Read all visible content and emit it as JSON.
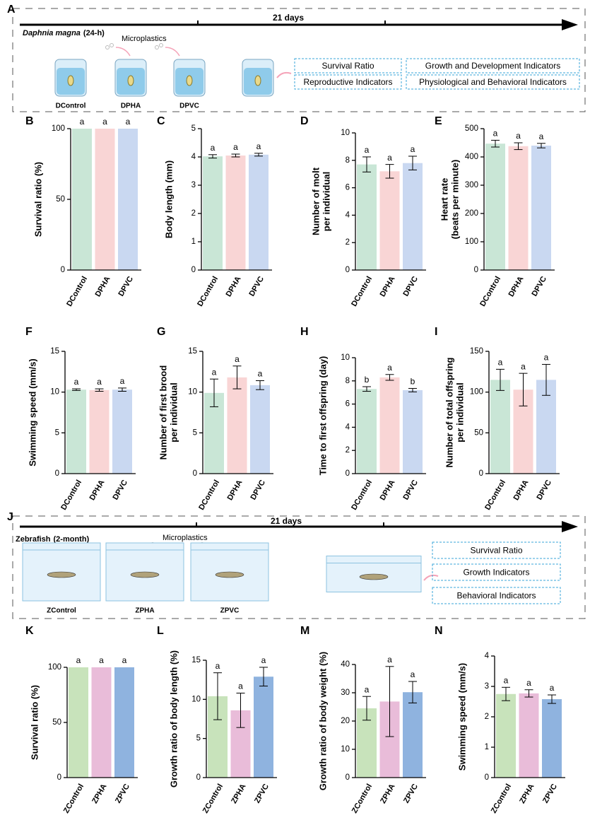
{
  "schematics": [
    {
      "label": "A",
      "duration": "21 days",
      "organism": "Daphnia magna",
      "exposure": "(24-h)",
      "agent": "Microplastics",
      "groups": [
        "DControl",
        "DPHA",
        "DPVC"
      ],
      "indicators": [
        "Survival Ratio",
        "Growth and Development Indicators",
        "Reproductive Indicators",
        "Physiological and Behavioral Indicators"
      ]
    },
    {
      "label": "J",
      "duration": "21 days",
      "organism": "Zebrafish",
      "exposure": "(2-month)",
      "agent": "Microplastics",
      "groups": [
        "ZControl",
        "ZPHA",
        "ZPVC"
      ],
      "indicators": [
        "Survival Ratio",
        "Growth Indicators",
        "Behavioral Indicators"
      ]
    }
  ],
  "chart_data": [
    {
      "type": "bar",
      "panel": "B",
      "ylabel": [
        "Survival ratio (%)"
      ],
      "categories": [
        "DControl",
        "DPHA",
        "DPVC"
      ],
      "values": [
        100,
        100,
        100
      ],
      "errors": [
        null,
        null,
        null
      ],
      "annotations": [
        "a",
        "a",
        "a"
      ],
      "colors": [
        "#c9e6d6",
        "#f9d5d5",
        "#c9d8f1"
      ],
      "ylim": [
        0,
        100
      ],
      "yticks": [
        0,
        50,
        100
      ]
    },
    {
      "type": "bar",
      "panel": "C",
      "ylabel": [
        "Body length (mm)"
      ],
      "categories": [
        "DControl",
        "DPHA",
        "DPVC"
      ],
      "values": [
        4.02,
        4.05,
        4.08
      ],
      "errors": [
        0.06,
        0.05,
        0.05
      ],
      "annotations": [
        "a",
        "a",
        "a"
      ],
      "colors": [
        "#c9e6d6",
        "#f9d5d5",
        "#c9d8f1"
      ],
      "ylim": [
        0,
        5
      ],
      "yticks": [
        0,
        1,
        2,
        3,
        4,
        5
      ]
    },
    {
      "type": "bar",
      "panel": "D",
      "ylabel": [
        "Number of molt",
        "per individual"
      ],
      "categories": [
        "DControl",
        "DPHA",
        "DPVC"
      ],
      "values": [
        7.7,
        7.2,
        7.8
      ],
      "errors": [
        0.55,
        0.5,
        0.5
      ],
      "annotations": [
        "a",
        "a",
        "a"
      ],
      "colors": [
        "#c9e6d6",
        "#f9d5d5",
        "#c9d8f1"
      ],
      "ylim": [
        0,
        10
      ],
      "yticks": [
        0,
        2,
        4,
        6,
        8,
        10
      ]
    },
    {
      "type": "bar",
      "panel": "E",
      "ylabel": [
        "Heart rate",
        "(beats per minute)"
      ],
      "categories": [
        "DControl",
        "DPHA",
        "DPVC"
      ],
      "values": [
        447,
        438,
        440
      ],
      "errors": [
        12,
        12,
        8
      ],
      "annotations": [
        "a",
        "a",
        "a"
      ],
      "colors": [
        "#c9e6d6",
        "#f9d5d5",
        "#c9d8f1"
      ],
      "ylim": [
        0,
        500
      ],
      "yticks": [
        0,
        100,
        200,
        300,
        400,
        500
      ]
    },
    {
      "type": "bar",
      "panel": "F",
      "ylabel": [
        "Swimming speed (mm/s)"
      ],
      "categories": [
        "DControl",
        "DPHA",
        "DPVC"
      ],
      "values": [
        10.3,
        10.25,
        10.3
      ],
      "errors": [
        0.1,
        0.15,
        0.2
      ],
      "annotations": [
        "a",
        "a",
        "a"
      ],
      "colors": [
        "#c9e6d6",
        "#f9d5d5",
        "#c9d8f1"
      ],
      "ylim": [
        0,
        15
      ],
      "yticks": [
        0,
        5,
        10,
        15
      ]
    },
    {
      "type": "bar",
      "panel": "G",
      "ylabel": [
        "Number of first brood",
        "per individual"
      ],
      "categories": [
        "DControl",
        "DPHA",
        "DPVC"
      ],
      "values": [
        9.9,
        11.8,
        10.85
      ],
      "errors": [
        1.7,
        1.4,
        0.55
      ],
      "annotations": [
        "a",
        "a",
        "a"
      ],
      "colors": [
        "#c9e6d6",
        "#f9d5d5",
        "#c9d8f1"
      ],
      "ylim": [
        0,
        15
      ],
      "yticks": [
        0,
        5,
        10,
        15
      ]
    },
    {
      "type": "bar",
      "panel": "H",
      "ylabel": [
        "Time to first offspring (day)"
      ],
      "categories": [
        "DControl",
        "DPHA",
        "DPVC"
      ],
      "values": [
        7.3,
        8.3,
        7.2
      ],
      "errors": [
        0.2,
        0.25,
        0.15
      ],
      "annotations": [
        "b",
        "a",
        "b"
      ],
      "colors": [
        "#c9e6d6",
        "#f9d5d5",
        "#c9d8f1"
      ],
      "ylim": [
        0,
        10
      ],
      "yticks": [
        0,
        2,
        4,
        6,
        8,
        10
      ]
    },
    {
      "type": "bar",
      "panel": "I",
      "ylabel": [
        "Number of total offspring",
        "per individual"
      ],
      "categories": [
        "DControl",
        "DPHA",
        "DPVC"
      ],
      "values": [
        115,
        103,
        115
      ],
      "errors": [
        13,
        20,
        19
      ],
      "annotations": [
        "a",
        "a",
        "a"
      ],
      "colors": [
        "#c9e6d6",
        "#f9d5d5",
        "#c9d8f1"
      ],
      "ylim": [
        0,
        150
      ],
      "yticks": [
        0,
        50,
        100,
        150
      ]
    },
    {
      "type": "bar",
      "panel": "K",
      "ylabel": [
        "Survival ratio (%)"
      ],
      "categories": [
        "ZControl",
        "ZPHA",
        "ZPVC"
      ],
      "values": [
        100,
        100,
        100
      ],
      "errors": [
        null,
        null,
        null
      ],
      "annotations": [
        "a",
        "a",
        "a"
      ],
      "colors": [
        "#c8e3bb",
        "#e9bcd9",
        "#8fb3df"
      ],
      "ylim": [
        0,
        100
      ],
      "yticks": [
        0,
        50,
        100
      ]
    },
    {
      "type": "bar",
      "panel": "L",
      "ylabel": [
        "Growth ratio of body length (%)"
      ],
      "categories": [
        "ZControl",
        "ZPHA",
        "ZPVC"
      ],
      "values": [
        10.4,
        8.6,
        12.9
      ],
      "errors": [
        3,
        2.2,
        1.2
      ],
      "annotations": [
        "a",
        "a",
        "a"
      ],
      "colors": [
        "#c8e3bb",
        "#e9bcd9",
        "#8fb3df"
      ],
      "ylim": [
        0,
        15
      ],
      "yticks": [
        0,
        5,
        10,
        15
      ]
    },
    {
      "type": "bar",
      "panel": "M",
      "ylabel": [
        "Growth ratio of body weight (%)"
      ],
      "categories": [
        "ZControl",
        "ZPHA",
        "ZPVC"
      ],
      "values": [
        24.5,
        26.9,
        30.2
      ],
      "errors": [
        4.2,
        12.4,
        3.8
      ],
      "annotations": [
        "a",
        "a",
        "a"
      ],
      "colors": [
        "#c8e3bb",
        "#e9bcd9",
        "#8fb3df"
      ],
      "ylim": [
        0,
        40
      ],
      "yticks": [
        0,
        10,
        20,
        30,
        40
      ]
    },
    {
      "type": "bar",
      "panel": "N",
      "ylabel": [
        "Swimming speed (mm/s)"
      ],
      "categories": [
        "ZControl",
        "ZPHA",
        "ZPVC"
      ],
      "values": [
        2.75,
        2.77,
        2.58
      ],
      "errors": [
        0.22,
        0.12,
        0.14
      ],
      "annotations": [
        "a",
        "a",
        "a"
      ],
      "colors": [
        "#c8e3bb",
        "#e9bcd9",
        "#8fb3df"
      ],
      "ylim": [
        0,
        4
      ],
      "yticks": [
        0,
        1,
        2,
        3,
        4
      ]
    }
  ]
}
